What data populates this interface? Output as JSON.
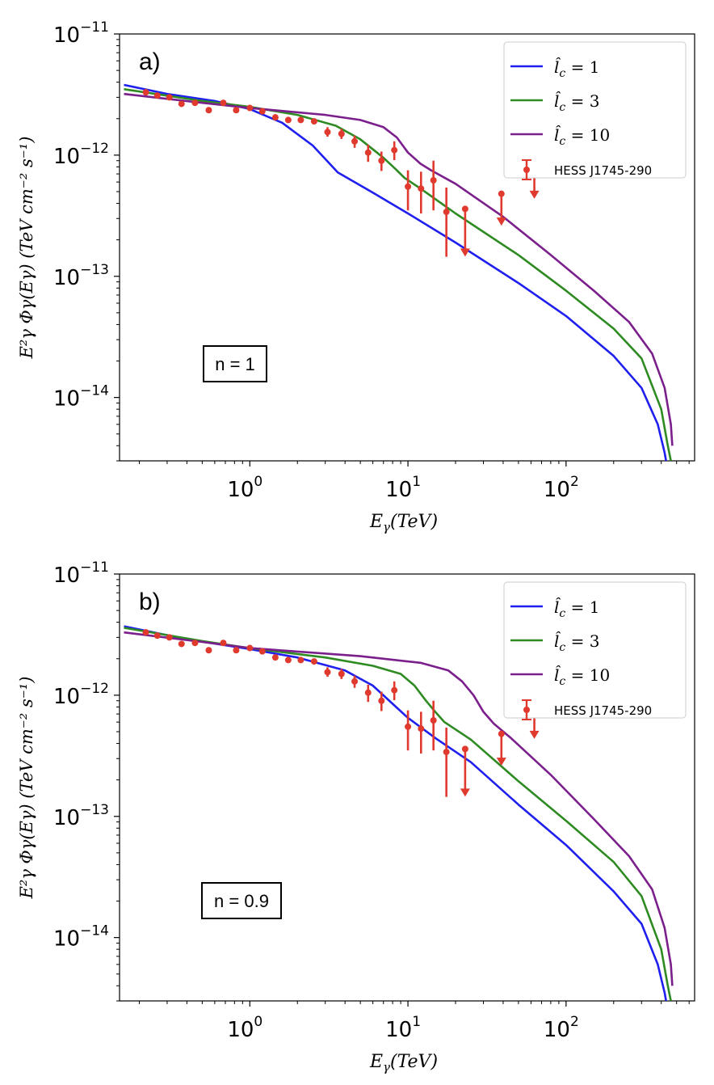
{
  "chart_data": [
    {
      "type": "line",
      "panel_label": "a)",
      "annotation": "n = 1",
      "xlabel_main": "E",
      "xlabel_sub": "γ",
      "xlabel_tail": "(TeV)",
      "ylabel": "E²γ Φγ(Eγ) (TeV cm⁻² s⁻¹)",
      "xscale": "log",
      "yscale": "log",
      "xlim": [
        0.15,
        650
      ],
      "ylim": [
        3e-15,
        1e-11
      ],
      "x_ticks": [
        {
          "base": "10",
          "exp": "0",
          "value": 1
        },
        {
          "base": "10",
          "exp": "1",
          "value": 10
        },
        {
          "base": "10",
          "exp": "2",
          "value": 100
        }
      ],
      "y_ticks": [
        {
          "base": "10",
          "exp": "−11",
          "value": 1e-11
        },
        {
          "base": "10",
          "exp": "−12",
          "value": 1e-12
        },
        {
          "base": "10",
          "exp": "−13",
          "value": 1e-13
        },
        {
          "base": "10",
          "exp": "−14",
          "value": 1e-14
        }
      ],
      "series": [
        {
          "name_var": "l̂",
          "name_sub": "c",
          "name_eq": " = 1",
          "color": "#1f1fef",
          "x": [
            0.16,
            0.3,
            0.6,
            1.0,
            1.6,
            2.5,
            3.2,
            3.6,
            6,
            10,
            20,
            50,
            100,
            200,
            300,
            380,
            420,
            440
          ],
          "y": [
            3.8e-12,
            3.2e-12,
            2.8e-12,
            2.4e-12,
            1.85e-12,
            1.2e-12,
            8.5e-13,
            7.2e-13,
            4.9e-13,
            3.3e-13,
            1.9e-13,
            8.8e-14,
            4.7e-14,
            2.2e-14,
            1.2e-14,
            6e-15,
            3.5e-15,
            2.5e-15
          ]
        },
        {
          "name_var": "l̂",
          "name_sub": "c",
          "name_eq": " = 3",
          "color": "#2e8b22",
          "x": [
            0.16,
            0.5,
            1.0,
            2.0,
            3.5,
            5.0,
            7.0,
            8.5,
            9.5,
            12,
            20,
            50,
            100,
            200,
            300,
            400,
            440,
            460
          ],
          "y": [
            3.5e-12,
            2.8e-12,
            2.5e-12,
            2.15e-12,
            1.75e-12,
            1.35e-12,
            9.5e-13,
            7.5e-13,
            6.5e-13,
            5.3e-13,
            3.3e-13,
            1.5e-13,
            7.6e-14,
            3.7e-14,
            2.1e-14,
            8e-15,
            4e-15,
            3e-15
          ]
        },
        {
          "name_var": "l̂",
          "name_sub": "c",
          "name_eq": " = 10",
          "color": "#7b1f8c",
          "x": [
            0.16,
            0.5,
            1.0,
            3.0,
            5.0,
            7.0,
            8.5,
            10,
            12,
            14,
            20,
            40,
            80,
            150,
            250,
            350,
            420,
            460,
            470
          ],
          "y": [
            3.2e-12,
            2.7e-12,
            2.45e-12,
            2.15e-12,
            1.95e-12,
            1.7e-12,
            1.4e-12,
            1.05e-12,
            8.5e-13,
            7.5e-13,
            5.8e-13,
            3.1e-13,
            1.5e-13,
            7.6e-14,
            4.2e-14,
            2.3e-14,
            1.2e-14,
            6e-15,
            4e-15
          ]
        }
      ],
      "data_series": {
        "name": "HESS J1745-290",
        "color": "#e03a2e",
        "points": [
          {
            "x": 0.22,
            "y": 3.3e-12
          },
          {
            "x": 0.26,
            "y": 3.1e-12
          },
          {
            "x": 0.31,
            "y": 3e-12
          },
          {
            "x": 0.37,
            "y": 2.65e-12
          },
          {
            "x": 0.45,
            "y": 2.7e-12
          },
          {
            "x": 0.55,
            "y": 2.35e-12
          },
          {
            "x": 0.68,
            "y": 2.7e-12
          },
          {
            "x": 0.82,
            "y": 2.35e-12
          },
          {
            "x": 1.0,
            "y": 2.45e-12
          },
          {
            "x": 1.2,
            "y": 2.3e-12
          },
          {
            "x": 1.45,
            "y": 2.05e-12
          },
          {
            "x": 1.75,
            "y": 1.95e-12
          },
          {
            "x": 2.1,
            "y": 1.95e-12
          },
          {
            "x": 2.55,
            "y": 1.9e-12
          },
          {
            "x": 3.1,
            "y": 1.55e-12,
            "lo": 1.42e-12,
            "hi": 1.7e-12
          },
          {
            "x": 3.8,
            "y": 1.5e-12,
            "lo": 1.36e-12,
            "hi": 1.65e-12
          },
          {
            "x": 4.6,
            "y": 1.3e-12,
            "lo": 1.15e-12,
            "hi": 1.45e-12
          },
          {
            "x": 5.6,
            "y": 1.05e-12,
            "lo": 8.8e-13,
            "hi": 1.22e-12
          },
          {
            "x": 6.8,
            "y": 9e-13,
            "lo": 7.4e-13,
            "hi": 1.07e-12
          },
          {
            "x": 8.2,
            "y": 1.1e-12,
            "lo": 9.1e-13,
            "hi": 1.3e-12
          },
          {
            "x": 10.0,
            "y": 5.5e-13,
            "lo": 3.5e-13,
            "hi": 7.5e-13
          },
          {
            "x": 12.1,
            "y": 5.3e-13,
            "lo": 3.3e-13,
            "hi": 7.3e-13
          },
          {
            "x": 14.5,
            "y": 6.2e-13,
            "lo": 3.5e-13,
            "hi": 9e-13
          },
          {
            "x": 17.5,
            "y": 3.4e-13,
            "lo": 1.45e-13,
            "hi": 5.4e-13
          },
          {
            "x": 23.0,
            "y": 3.6e-13,
            "upper_limit": true,
            "arrow_to": 1.5e-13
          },
          {
            "x": 39.0,
            "y": 4.8e-13,
            "upper_limit": true,
            "arrow_to": 2.7e-13
          },
          {
            "x": 63.0,
            "y": 7.8e-13,
            "upper_limit": true,
            "arrow_to": 4.5e-13,
            "faint": true
          }
        ]
      }
    },
    {
      "type": "line",
      "panel_label": "b)",
      "annotation": "n = 0.9",
      "xlabel_main": "E",
      "xlabel_sub": "γ",
      "xlabel_tail": "(TeV)",
      "ylabel": "E²γ Φγ(Eγ) (TeV cm⁻² s⁻¹)",
      "xscale": "log",
      "yscale": "log",
      "xlim": [
        0.15,
        650
      ],
      "ylim": [
        3e-15,
        1e-11
      ],
      "x_ticks": [
        {
          "base": "10",
          "exp": "0",
          "value": 1
        },
        {
          "base": "10",
          "exp": "1",
          "value": 10
        },
        {
          "base": "10",
          "exp": "2",
          "value": 100
        }
      ],
      "y_ticks": [
        {
          "base": "10",
          "exp": "−11",
          "value": 1e-11
        },
        {
          "base": "10",
          "exp": "−12",
          "value": 1e-12
        },
        {
          "base": "10",
          "exp": "−13",
          "value": 1e-13
        },
        {
          "base": "10",
          "exp": "−14",
          "value": 1e-14
        }
      ],
      "series": [
        {
          "name_var": "l̂",
          "name_sub": "c",
          "name_eq": " = 1",
          "color": "#1f1fef",
          "x": [
            0.16,
            0.4,
            1.0,
            2.0,
            4.0,
            6.0,
            8.0,
            10,
            15,
            25,
            50,
            100,
            200,
            300,
            380,
            420,
            440
          ],
          "y": [
            3.7e-12,
            2.9e-12,
            2.4e-12,
            2.05e-12,
            1.6e-12,
            1.2e-12,
            8.5e-13,
            6.5e-13,
            4.4e-13,
            2.8e-13,
            1.25e-13,
            5.8e-14,
            2.4e-14,
            1.3e-14,
            6e-15,
            3.5e-15,
            2.5e-15
          ]
        },
        {
          "name_var": "l̂",
          "name_sub": "c",
          "name_eq": " = 3",
          "color": "#2e8b22",
          "x": [
            0.16,
            0.5,
            1.0,
            3.0,
            6.0,
            9.0,
            11,
            13,
            15,
            17,
            25,
            50,
            100,
            200,
            300,
            400,
            440,
            460
          ],
          "y": [
            3.6e-12,
            2.8e-12,
            2.45e-12,
            2.05e-12,
            1.75e-12,
            1.5e-12,
            1.2e-12,
            9e-13,
            7.2e-13,
            6e-13,
            4.3e-13,
            1.95e-13,
            9.2e-14,
            4.2e-14,
            2.2e-14,
            8e-15,
            4e-15,
            3e-15
          ]
        },
        {
          "name_var": "l̂",
          "name_sub": "c",
          "name_eq": " = 10",
          "color": "#7b1f8c",
          "x": [
            0.16,
            0.5,
            1.0,
            5.0,
            12,
            18,
            22,
            26,
            30,
            35,
            45,
            80,
            150,
            250,
            350,
            420,
            460,
            470
          ],
          "y": [
            3.3e-12,
            2.75e-12,
            2.45e-12,
            2.1e-12,
            1.85e-12,
            1.6e-12,
            1.3e-12,
            1e-12,
            7.3e-13,
            5.8e-13,
            4.4e-13,
            2.2e-13,
            9.5e-14,
            4.7e-14,
            2.5e-14,
            1.2e-14,
            6e-15,
            4e-15
          ]
        }
      ],
      "data_series": {
        "name": "HESS J1745-290",
        "color": "#e03a2e",
        "points": [
          {
            "x": 0.22,
            "y": 3.3e-12
          },
          {
            "x": 0.26,
            "y": 3.1e-12
          },
          {
            "x": 0.31,
            "y": 3e-12
          },
          {
            "x": 0.37,
            "y": 2.65e-12
          },
          {
            "x": 0.45,
            "y": 2.7e-12
          },
          {
            "x": 0.55,
            "y": 2.35e-12
          },
          {
            "x": 0.68,
            "y": 2.7e-12
          },
          {
            "x": 0.82,
            "y": 2.35e-12
          },
          {
            "x": 1.0,
            "y": 2.45e-12
          },
          {
            "x": 1.2,
            "y": 2.3e-12
          },
          {
            "x": 1.45,
            "y": 2.05e-12
          },
          {
            "x": 1.75,
            "y": 1.95e-12
          },
          {
            "x": 2.1,
            "y": 1.95e-12
          },
          {
            "x": 2.55,
            "y": 1.9e-12
          },
          {
            "x": 3.1,
            "y": 1.55e-12,
            "lo": 1.42e-12,
            "hi": 1.7e-12
          },
          {
            "x": 3.8,
            "y": 1.5e-12,
            "lo": 1.36e-12,
            "hi": 1.65e-12
          },
          {
            "x": 4.6,
            "y": 1.3e-12,
            "lo": 1.15e-12,
            "hi": 1.45e-12
          },
          {
            "x": 5.6,
            "y": 1.05e-12,
            "lo": 8.8e-13,
            "hi": 1.22e-12
          },
          {
            "x": 6.8,
            "y": 9e-13,
            "lo": 7.4e-13,
            "hi": 1.07e-12
          },
          {
            "x": 8.2,
            "y": 1.1e-12,
            "lo": 9.1e-13,
            "hi": 1.3e-12
          },
          {
            "x": 10.0,
            "y": 5.5e-13,
            "lo": 3.5e-13,
            "hi": 7.5e-13
          },
          {
            "x": 12.1,
            "y": 5.3e-13,
            "lo": 3.3e-13,
            "hi": 7.3e-13
          },
          {
            "x": 14.5,
            "y": 6.2e-13,
            "lo": 3.5e-13,
            "hi": 9e-13
          },
          {
            "x": 17.5,
            "y": 3.4e-13,
            "lo": 1.45e-13,
            "hi": 5.4e-13
          },
          {
            "x": 23.0,
            "y": 3.6e-13,
            "upper_limit": true,
            "arrow_to": 1.5e-13
          },
          {
            "x": 39.0,
            "y": 4.8e-13,
            "upper_limit": true,
            "arrow_to": 2.7e-13
          },
          {
            "x": 63.0,
            "y": 7.8e-13,
            "upper_limit": true,
            "arrow_to": 4.5e-13,
            "faint": true
          }
        ]
      }
    }
  ]
}
